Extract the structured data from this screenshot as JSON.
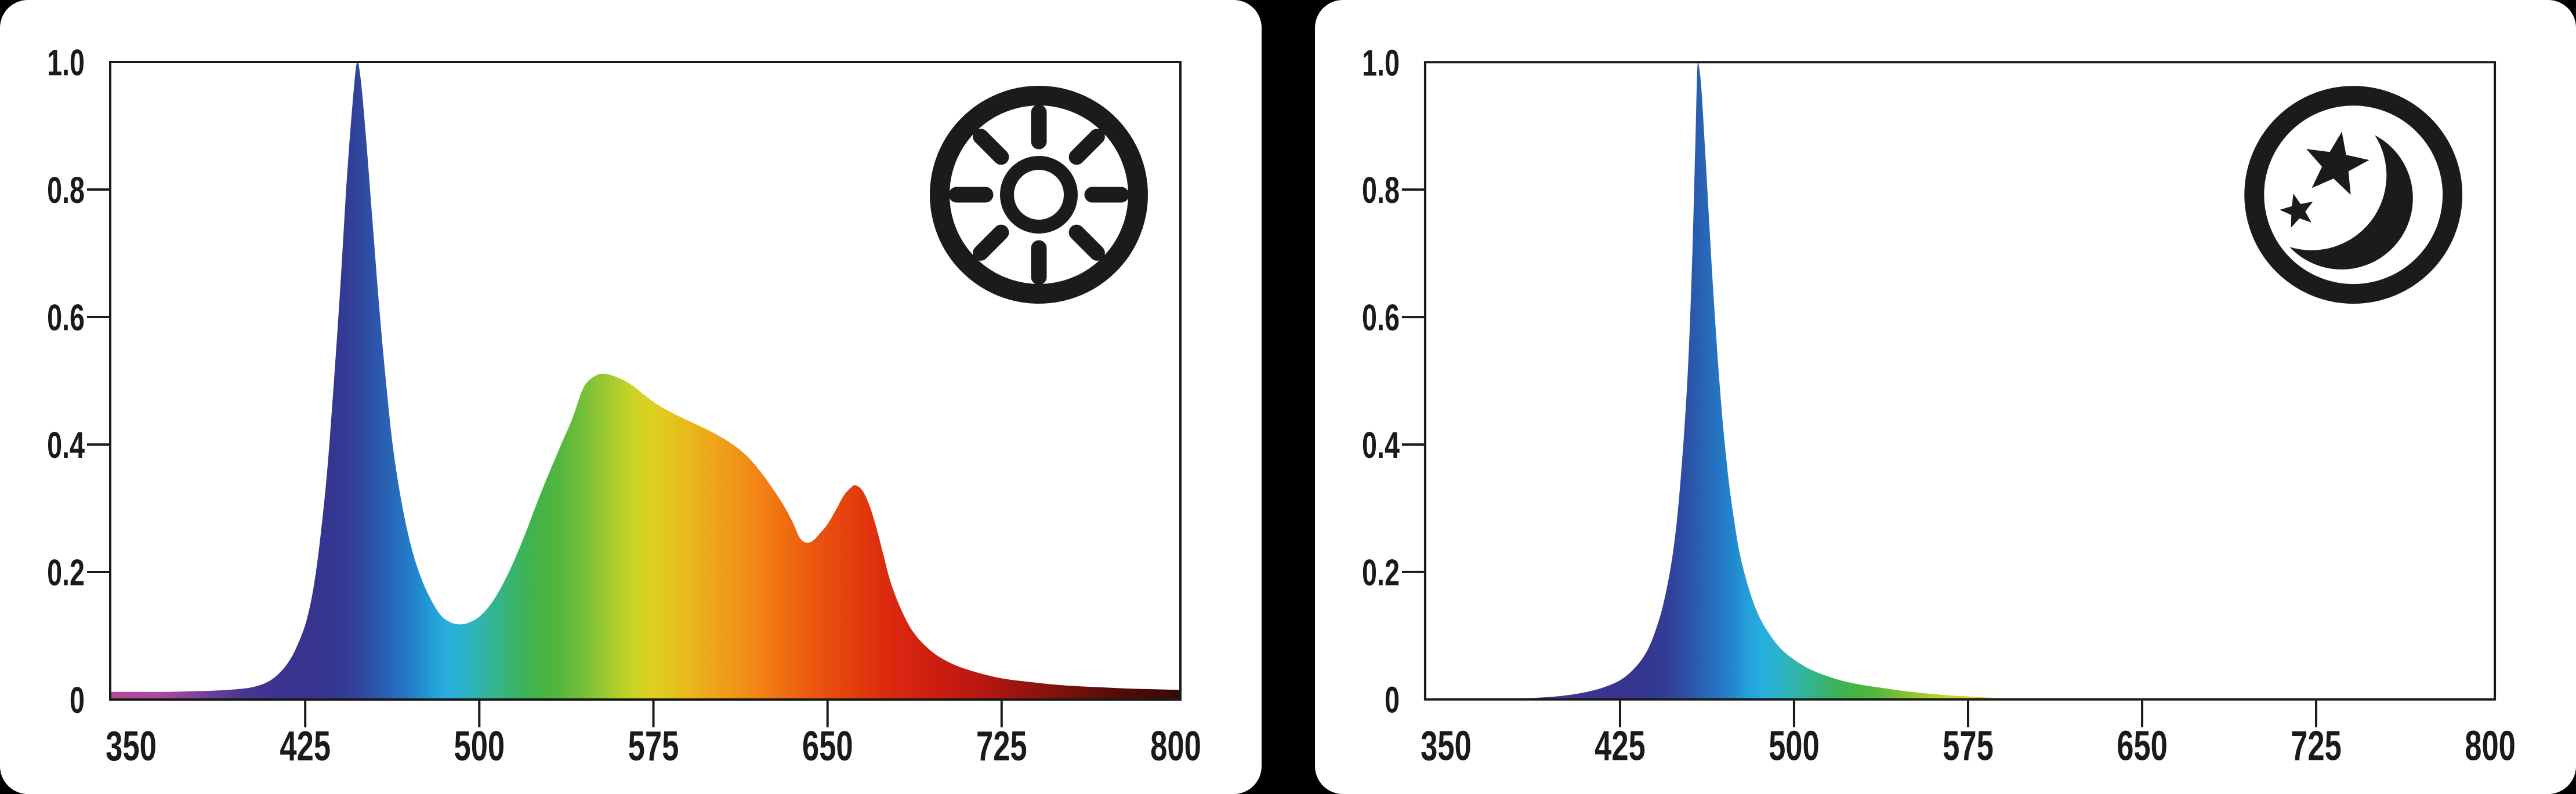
{
  "page": {
    "background_color": "#000000",
    "panel_color": "#ffffff",
    "axis_color": "#1a1a18",
    "label_color": "#1a1a18",
    "icon_color": "#1b1b19"
  },
  "axes": {
    "xlim": [
      341,
      802
    ],
    "ylim": [
      0,
      1
    ],
    "x_ticks": [
      350,
      425,
      500,
      575,
      650,
      725,
      800
    ],
    "x_tick_labels": [
      "350",
      "425",
      "500",
      "575",
      "650",
      "725",
      "800"
    ],
    "x_tick_marks": [
      425,
      500,
      575,
      650,
      725
    ],
    "y_ticks": [
      0,
      0.2,
      0.4,
      0.6,
      0.8,
      1.0
    ],
    "y_tick_labels": [
      "0",
      "0.2",
      "0.4",
      "0.6",
      "0.8",
      "1.0"
    ],
    "y_tick_marks": [
      0.2,
      0.4,
      0.6,
      0.8
    ],
    "grid": false,
    "legend": "none"
  },
  "spectrum_gradient": {
    "stops": [
      [
        340,
        "#b4499a"
      ],
      [
        360,
        "#ac4b9d"
      ],
      [
        375,
        "#8c449c"
      ],
      [
        387,
        "#643e97"
      ],
      [
        398,
        "#493691"
      ],
      [
        410,
        "#3d3390"
      ],
      [
        424,
        "#37338e"
      ],
      [
        436,
        "#34368f"
      ],
      [
        444,
        "#323d96"
      ],
      [
        450,
        "#2f48a0"
      ],
      [
        456,
        "#2b57ac"
      ],
      [
        462,
        "#2866b8"
      ],
      [
        468,
        "#2476c4"
      ],
      [
        474,
        "#2289ce"
      ],
      [
        480,
        "#24a0d9"
      ],
      [
        486,
        "#27addd"
      ],
      [
        492,
        "#2ab3cf"
      ],
      [
        498,
        "#2eb5b4"
      ],
      [
        504,
        "#32b499"
      ],
      [
        511,
        "#36b47b"
      ],
      [
        518,
        "#3cb35b"
      ],
      [
        526,
        "#44b446"
      ],
      [
        534,
        "#52b63e"
      ],
      [
        543,
        "#6fbd3a"
      ],
      [
        552,
        "#92c734"
      ],
      [
        560,
        "#b3cf2b"
      ],
      [
        567,
        "#ccd324"
      ],
      [
        574,
        "#dcd01f"
      ],
      [
        581,
        "#e2c81d"
      ],
      [
        590,
        "#e8b81c"
      ],
      [
        599,
        "#eda81a"
      ],
      [
        608,
        "#f09a18"
      ],
      [
        617,
        "#f28a15"
      ],
      [
        626,
        "#f17912"
      ],
      [
        635,
        "#ee6710"
      ],
      [
        644,
        "#eb5610"
      ],
      [
        653,
        "#e8490e"
      ],
      [
        662,
        "#e43c0d"
      ],
      [
        672,
        "#de2e0f"
      ],
      [
        684,
        "#d72410"
      ],
      [
        697,
        "#cc1d11"
      ],
      [
        712,
        "#bd1910"
      ],
      [
        728,
        "#a3150f"
      ],
      [
        746,
        "#85120d"
      ],
      [
        765,
        "#640e0a"
      ],
      [
        783,
        "#490b08"
      ],
      [
        802,
        "#370a07"
      ]
    ]
  },
  "chart_data": [
    {
      "id": "daylight",
      "type": "area",
      "icon": "sun-icon",
      "title": "",
      "xlabel": "",
      "ylabel": "",
      "peaks": [
        {
          "wavelength_nm": 447,
          "intensity": 1.0
        },
        {
          "wavelength_nm": 553,
          "intensity": 0.51
        },
        {
          "wavelength_nm": 661,
          "intensity": 0.34
        }
      ],
      "points": [
        [
          341,
          0.012
        ],
        [
          352,
          0.012
        ],
        [
          364,
          0.012
        ],
        [
          376,
          0.013
        ],
        [
          386,
          0.014
        ],
        [
          395,
          0.016
        ],
        [
          403,
          0.02
        ],
        [
          410,
          0.03
        ],
        [
          416,
          0.05
        ],
        [
          421,
          0.08
        ],
        [
          426,
          0.13
        ],
        [
          430,
          0.21
        ],
        [
          434,
          0.34
        ],
        [
          437,
          0.48
        ],
        [
          440,
          0.64
        ],
        [
          443,
          0.82
        ],
        [
          446,
          0.96
        ],
        [
          447.5,
          1.0
        ],
        [
          449,
          0.97
        ],
        [
          451,
          0.89
        ],
        [
          454,
          0.75
        ],
        [
          457,
          0.61
        ],
        [
          460,
          0.49
        ],
        [
          463,
          0.39
        ],
        [
          467,
          0.3
        ],
        [
          471,
          0.235
        ],
        [
          475,
          0.19
        ],
        [
          479,
          0.158
        ],
        [
          483,
          0.134
        ],
        [
          487,
          0.122
        ],
        [
          491,
          0.118
        ],
        [
          495,
          0.12
        ],
        [
          500,
          0.13
        ],
        [
          505,
          0.15
        ],
        [
          510,
          0.18
        ],
        [
          515,
          0.218
        ],
        [
          520,
          0.262
        ],
        [
          525,
          0.31
        ],
        [
          530,
          0.355
        ],
        [
          535,
          0.398
        ],
        [
          540,
          0.44
        ],
        [
          545,
          0.49
        ],
        [
          550,
          0.508
        ],
        [
          554,
          0.511
        ],
        [
          559,
          0.506
        ],
        [
          565,
          0.495
        ],
        [
          571,
          0.478
        ],
        [
          577,
          0.462
        ],
        [
          584,
          0.448
        ],
        [
          592,
          0.434
        ],
        [
          600,
          0.42
        ],
        [
          608,
          0.403
        ],
        [
          615,
          0.383
        ],
        [
          621,
          0.358
        ],
        [
          626,
          0.333
        ],
        [
          631,
          0.305
        ],
        [
          635,
          0.278
        ],
        [
          638,
          0.254
        ],
        [
          641,
          0.246
        ],
        [
          644,
          0.25
        ],
        [
          647,
          0.262
        ],
        [
          650,
          0.275
        ],
        [
          654,
          0.3
        ],
        [
          657,
          0.32
        ],
        [
          660,
          0.332
        ],
        [
          662,
          0.336
        ],
        [
          665,
          0.328
        ],
        [
          668,
          0.305
        ],
        [
          671,
          0.27
        ],
        [
          674,
          0.228
        ],
        [
          677,
          0.186
        ],
        [
          681,
          0.147
        ],
        [
          685,
          0.117
        ],
        [
          689,
          0.096
        ],
        [
          694,
          0.078
        ],
        [
          699,
          0.065
        ],
        [
          705,
          0.054
        ],
        [
          712,
          0.045
        ],
        [
          719,
          0.038
        ],
        [
          727,
          0.032
        ],
        [
          736,
          0.028
        ],
        [
          746,
          0.024
        ],
        [
          757,
          0.021
        ],
        [
          769,
          0.019
        ],
        [
          781,
          0.017
        ],
        [
          792,
          0.016
        ],
        [
          802,
          0.015
        ]
      ]
    },
    {
      "id": "night",
      "type": "area",
      "icon": "moon-stars-icon",
      "title": "",
      "xlabel": "",
      "ylabel": "",
      "peaks": [
        {
          "wavelength_nm": 458,
          "intensity": 1.0
        }
      ],
      "points": [
        [
          341,
          0
        ],
        [
          370,
          0.001
        ],
        [
          385,
          0.002
        ],
        [
          395,
          0.004
        ],
        [
          403,
          0.007
        ],
        [
          411,
          0.012
        ],
        [
          418,
          0.019
        ],
        [
          425,
          0.03
        ],
        [
          431,
          0.048
        ],
        [
          436,
          0.072
        ],
        [
          440,
          0.105
        ],
        [
          444,
          0.155
        ],
        [
          448,
          0.235
        ],
        [
          451,
          0.34
        ],
        [
          454,
          0.5
        ],
        [
          456,
          0.68
        ],
        [
          457.5,
          0.88
        ],
        [
          458.5,
          1.0
        ],
        [
          460,
          0.96
        ],
        [
          462,
          0.84
        ],
        [
          465,
          0.65
        ],
        [
          468,
          0.49
        ],
        [
          471,
          0.37
        ],
        [
          474,
          0.285
        ],
        [
          477,
          0.222
        ],
        [
          481,
          0.168
        ],
        [
          485,
          0.13
        ],
        [
          490,
          0.099
        ],
        [
          495,
          0.077
        ],
        [
          501,
          0.06
        ],
        [
          507,
          0.047
        ],
        [
          514,
          0.037
        ],
        [
          521,
          0.029
        ],
        [
          529,
          0.023
        ],
        [
          538,
          0.018
        ],
        [
          548,
          0.013
        ],
        [
          558,
          0.009
        ],
        [
          568,
          0.006
        ],
        [
          578,
          0.004
        ],
        [
          588,
          0.002
        ],
        [
          598,
          0.001
        ],
        [
          612,
          0.0005
        ],
        [
          640,
          0
        ],
        [
          720,
          0
        ],
        [
          802,
          0
        ]
      ]
    }
  ]
}
